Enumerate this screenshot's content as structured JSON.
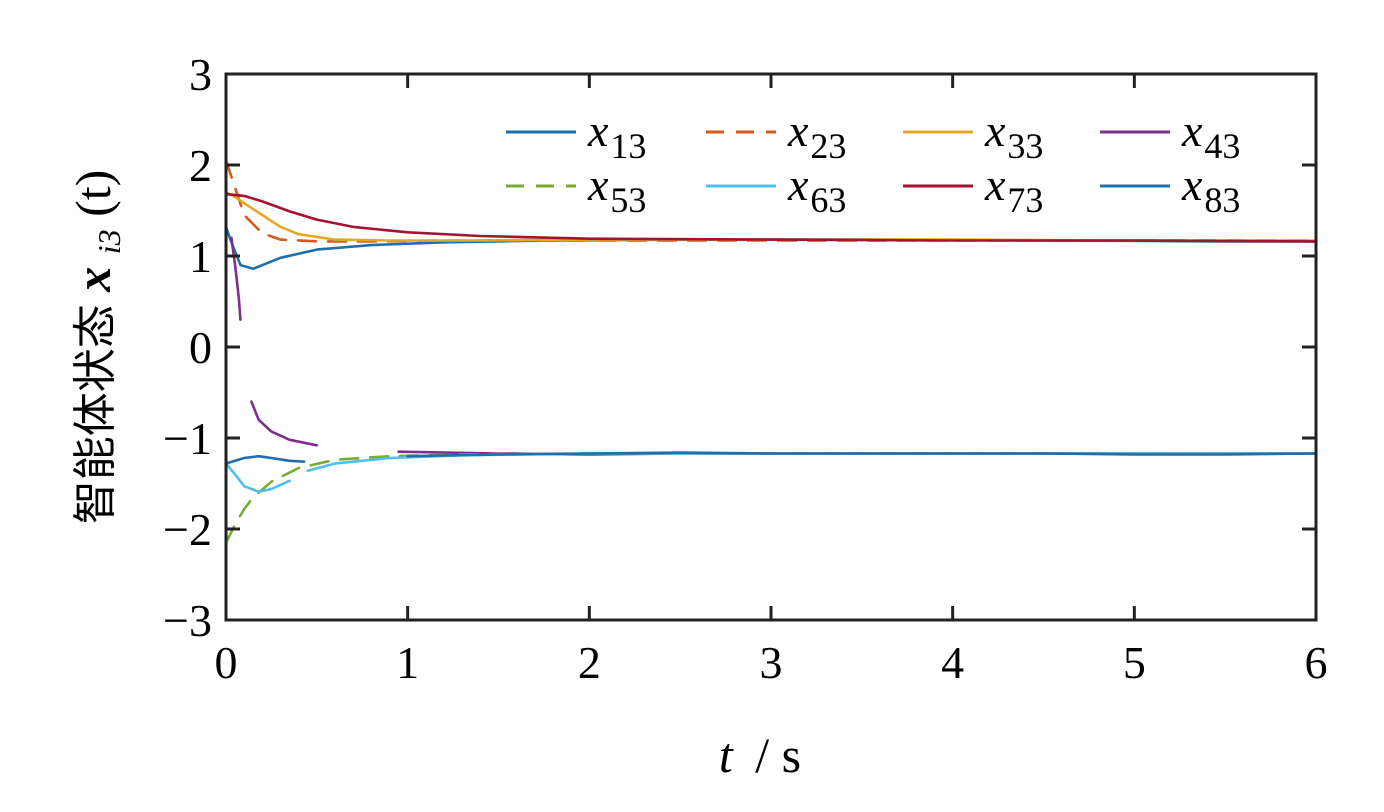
{
  "chart_data": {
    "type": "line",
    "xlabel_var": "t",
    "xlabel_unit": "/ s",
    "ylabel_text": "智能体状态",
    "ylabel_var": "x",
    "ylabel_sub": "i3",
    "ylabel_arg": "(t)",
    "xlim": [
      0,
      6
    ],
    "ylim": [
      -3,
      3
    ],
    "x_ticks": [
      "0",
      "1",
      "2",
      "3",
      "4",
      "5",
      "6"
    ],
    "y_ticks": [
      "3",
      "2",
      "1",
      "0",
      "−1",
      "−2",
      "−3"
    ],
    "legend_position": "top-right",
    "series": [
      {
        "name_var": "x",
        "name_sub": "13",
        "color": "#1f6fad",
        "dash": "solid",
        "x": [
          0,
          0.03,
          0.08,
          0.15,
          0.3,
          0.5,
          0.8,
          1.2,
          1.8,
          2.5,
          3.5,
          4.5,
          5.5,
          6
        ],
        "y": [
          1.32,
          1.15,
          0.9,
          0.86,
          0.98,
          1.07,
          1.12,
          1.15,
          1.17,
          1.18,
          1.18,
          1.17,
          1.16,
          1.16
        ]
      },
      {
        "name_var": "x",
        "name_sub": "23",
        "color": "#d55a1e",
        "dash": "dashed",
        "x": [
          0,
          0.05,
          0.1,
          0.2,
          0.3,
          0.5,
          0.8,
          1.2,
          2,
          3,
          4,
          5,
          6
        ],
        "y": [
          2.05,
          1.75,
          1.45,
          1.25,
          1.18,
          1.16,
          1.16,
          1.17,
          1.17,
          1.17,
          1.17,
          1.17,
          1.17
        ]
      },
      {
        "name_var": "x",
        "name_sub": "33",
        "color": "#e5a824",
        "dash": "solid",
        "x": [
          0,
          0.05,
          0.1,
          0.2,
          0.3,
          0.4,
          0.6,
          0.9,
          1.3,
          2,
          3,
          4,
          5,
          6
        ],
        "y": [
          1.7,
          1.65,
          1.58,
          1.45,
          1.32,
          1.24,
          1.18,
          1.17,
          1.17,
          1.18,
          1.18,
          1.18,
          1.17,
          1.17
        ]
      },
      {
        "name_var": "x",
        "name_sub": "43",
        "color": "#7e2f8e",
        "dash": "solid",
        "x": [
          0.03,
          0.05,
          0.07,
          0.08
        ],
        "y": [
          1.2,
          0.9,
          0.55,
          0.3
        ]
      },
      {
        "name_var": "x",
        "name_sub": "43",
        "color": "#7e2f8e",
        "dash": "solid",
        "x": [
          0.14,
          0.18,
          0.25,
          0.35,
          0.5
        ],
        "y": [
          -0.6,
          -0.8,
          -0.93,
          -1.02,
          -1.08
        ]
      },
      {
        "name_var": "x",
        "name_sub": "43",
        "color": "#7e2f8e",
        "dash": "solid",
        "x": [
          0.95,
          1.5,
          2,
          2.5,
          3,
          3.5,
          4,
          4.5,
          5,
          5.5,
          6
        ],
        "y": [
          -1.15,
          -1.17,
          -1.18,
          -1.17,
          -1.17,
          -1.17,
          -1.17,
          -1.17,
          -1.17,
          -1.17,
          -1.17
        ]
      },
      {
        "name_var": "x",
        "name_sub": "53",
        "color": "#77ac30",
        "dash": "dashed",
        "x": [
          0,
          0.05,
          0.1,
          0.15,
          0.25,
          0.4,
          0.6,
          0.9,
          1.3,
          2,
          3,
          4,
          5,
          6
        ],
        "y": [
          -2.15,
          -1.95,
          -1.78,
          -1.65,
          -1.48,
          -1.33,
          -1.24,
          -1.2,
          -1.18,
          -1.17,
          -1.17,
          -1.17,
          -1.17,
          -1.17
        ]
      },
      {
        "name_var": "x",
        "name_sub": "63",
        "color": "#4dbeee",
        "dash": "solid",
        "x": [
          0,
          0.05,
          0.1,
          0.18,
          0.25,
          0.35
        ],
        "y": [
          -1.28,
          -1.4,
          -1.53,
          -1.59,
          -1.56,
          -1.47
        ]
      },
      {
        "name_var": "x",
        "name_sub": "63",
        "color": "#4dbeee",
        "dash": "solid",
        "x": [
          0.45,
          0.6,
          0.9,
          1.3,
          2,
          3,
          4,
          5,
          6
        ],
        "y": [
          -1.36,
          -1.28,
          -1.22,
          -1.19,
          -1.17,
          -1.17,
          -1.17,
          -1.17,
          -1.17
        ]
      },
      {
        "name_var": "x",
        "name_sub": "73",
        "color": "#a2142f",
        "dash": "solid",
        "x": [
          0,
          0.1,
          0.2,
          0.35,
          0.5,
          0.7,
          1,
          1.4,
          2,
          3,
          4,
          5,
          6
        ],
        "y": [
          1.68,
          1.66,
          1.6,
          1.49,
          1.4,
          1.32,
          1.26,
          1.22,
          1.19,
          1.18,
          1.17,
          1.17,
          1.16
        ]
      },
      {
        "name_var": "x",
        "name_sub": "83",
        "color": "#1f6fad",
        "dash": "solid",
        "x": [
          0,
          0.05,
          0.1,
          0.18,
          0.25,
          0.35,
          0.43
        ],
        "y": [
          -1.28,
          -1.25,
          -1.22,
          -1.2,
          -1.22,
          -1.25,
          -1.26
        ]
      },
      {
        "name_var": "x",
        "name_sub": "83",
        "color": "#1f6fad",
        "dash": "solid",
        "x": [
          1.0,
          1.5,
          2,
          2.5,
          3,
          3.5,
          4,
          4.5,
          5,
          5.5,
          6
        ],
        "y": [
          -1.2,
          -1.18,
          -1.17,
          -1.16,
          -1.17,
          -1.17,
          -1.17,
          -1.17,
          -1.18,
          -1.18,
          -1.17
        ]
      }
    ],
    "legend": [
      {
        "var": "x",
        "sub": "13",
        "color": "#1f6fad",
        "dash": "solid"
      },
      {
        "var": "x",
        "sub": "23",
        "color": "#d55a1e",
        "dash": "dashed"
      },
      {
        "var": "x",
        "sub": "33",
        "color": "#e5a824",
        "dash": "solid"
      },
      {
        "var": "x",
        "sub": "43",
        "color": "#7e2f8e",
        "dash": "solid"
      },
      {
        "var": "x",
        "sub": "53",
        "color": "#77ac30",
        "dash": "dashed"
      },
      {
        "var": "x",
        "sub": "63",
        "color": "#4dbeee",
        "dash": "solid"
      },
      {
        "var": "x",
        "sub": "73",
        "color": "#a2142f",
        "dash": "solid"
      },
      {
        "var": "x",
        "sub": "83",
        "color": "#1f6fad",
        "dash": "solid"
      }
    ]
  }
}
